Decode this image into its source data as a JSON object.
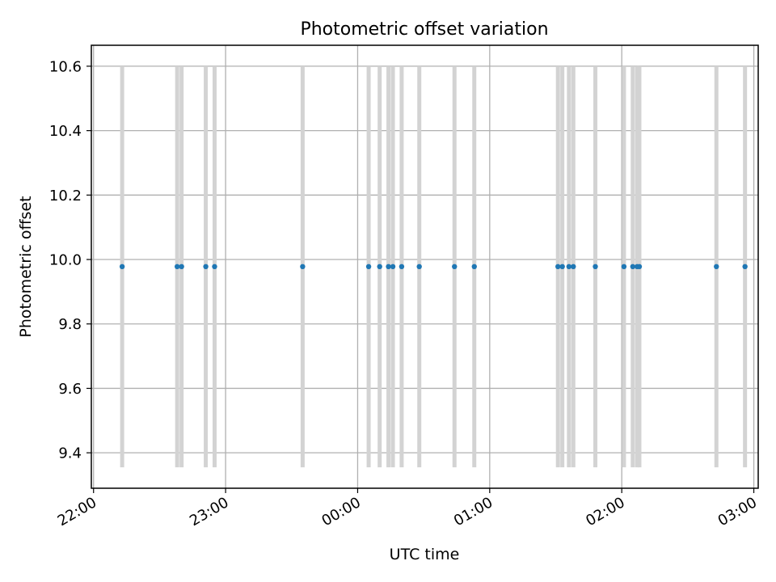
{
  "chart_data": {
    "type": "scatter",
    "title": "Photometric offset variation",
    "xlabel": "UTC time",
    "ylabel": "Photometric offset",
    "xlim": [
      "21:59",
      "03:02"
    ],
    "ylim": [
      9.29,
      10.665
    ],
    "x_ticks": [
      "22:00",
      "23:00",
      "00:00",
      "01:00",
      "02:00",
      "03:00"
    ],
    "y_ticks": [
      9.4,
      9.6,
      9.8,
      10.0,
      10.2,
      10.4,
      10.6
    ],
    "y_tick_labels": [
      "9.4",
      "9.6",
      "9.8",
      "10.0",
      "10.2",
      "10.4",
      "10.6"
    ],
    "grid": true,
    "marker_color": "#1f77b4",
    "errorbar_color": "#d3d3d3",
    "series": [
      {
        "x": [
          "22:13",
          "22:38",
          "22:40",
          "22:51",
          "22:55",
          "23:35",
          "00:05",
          "00:10",
          "00:14",
          "00:16",
          "00:20",
          "00:28",
          "00:44",
          "00:53",
          "01:31",
          "01:33",
          "01:36",
          "01:38",
          "01:48",
          "02:01",
          "02:05",
          "02:07",
          "02:08",
          "02:43",
          "02:56"
        ],
        "y": [
          9.978,
          9.978,
          9.978,
          9.978,
          9.978,
          9.978,
          9.978,
          9.978,
          9.978,
          9.978,
          9.978,
          9.978,
          9.978,
          9.978,
          9.978,
          9.978,
          9.978,
          9.978,
          9.978,
          9.978,
          9.978,
          9.978,
          9.978,
          9.978,
          9.978
        ],
        "yerr_low": [
          9.355,
          9.355,
          9.355,
          9.355,
          9.355,
          9.355,
          9.355,
          9.355,
          9.355,
          9.355,
          9.355,
          9.355,
          9.355,
          9.355,
          9.355,
          9.355,
          9.355,
          9.355,
          9.355,
          9.355,
          9.355,
          9.355,
          9.355,
          9.355,
          9.355
        ],
        "yerr_high": [
          10.6,
          10.6,
          10.6,
          10.6,
          10.6,
          10.6,
          10.6,
          10.6,
          10.6,
          10.6,
          10.6,
          10.6,
          10.6,
          10.6,
          10.6,
          10.6,
          10.6,
          10.6,
          10.6,
          10.6,
          10.6,
          10.6,
          10.6,
          10.6,
          10.6
        ]
      }
    ]
  }
}
